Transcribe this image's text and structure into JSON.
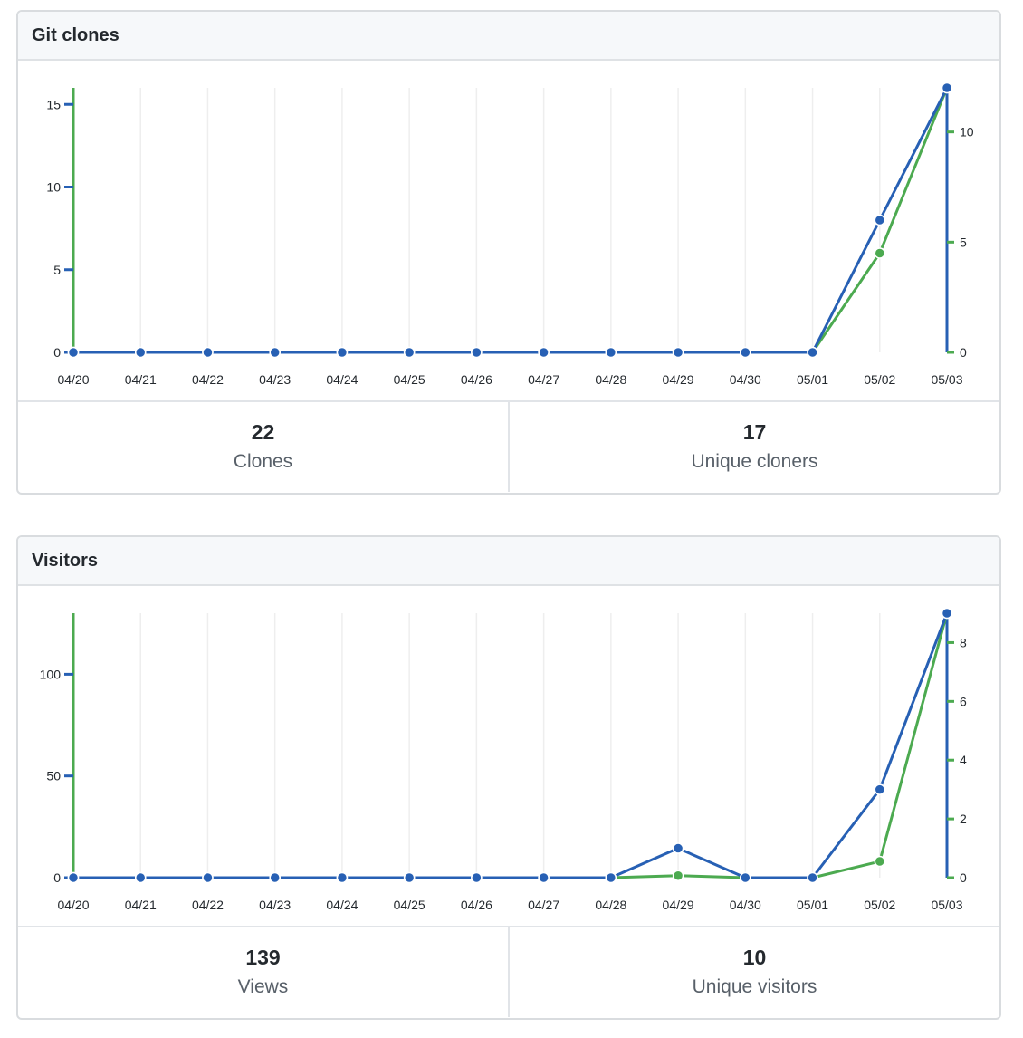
{
  "colors": {
    "total": "#4caa50",
    "unique": "#2760b4",
    "grid": "#eeeeee",
    "axis_text": "#24292e"
  },
  "clones": {
    "title": "Git clones",
    "total_value": "22",
    "total_label": "Clones",
    "unique_value": "17",
    "unique_label": "Unique cloners"
  },
  "visitors": {
    "title": "Visitors",
    "total_value": "139",
    "total_label": "Views",
    "unique_value": "10",
    "unique_label": "Unique visitors"
  },
  "chart_data": [
    {
      "type": "line",
      "title": "Git clones",
      "categories": [
        "04/20",
        "04/21",
        "04/22",
        "04/23",
        "04/24",
        "04/25",
        "04/26",
        "04/27",
        "04/28",
        "04/29",
        "04/30",
        "05/01",
        "05/02",
        "05/03"
      ],
      "series": [
        {
          "name": "Clones",
          "axis": "left",
          "color": "#4caa50",
          "values": [
            0,
            0,
            0,
            0,
            0,
            0,
            0,
            0,
            0,
            0,
            0,
            0,
            6,
            16
          ]
        },
        {
          "name": "Unique cloners",
          "axis": "right",
          "color": "#2760b4",
          "values": [
            0,
            0,
            0,
            0,
            0,
            0,
            0,
            0,
            0,
            0,
            0,
            0,
            6,
            12
          ]
        }
      ],
      "left_axis": {
        "ylim": [
          0,
          16
        ],
        "ticks": [
          0,
          5,
          10,
          15
        ]
      },
      "right_axis": {
        "ylim": [
          0,
          12
        ],
        "ticks": [
          0,
          5,
          10
        ]
      },
      "grid": true
    },
    {
      "type": "line",
      "title": "Visitors",
      "categories": [
        "04/20",
        "04/21",
        "04/22",
        "04/23",
        "04/24",
        "04/25",
        "04/26",
        "04/27",
        "04/28",
        "04/29",
        "04/30",
        "05/01",
        "05/02",
        "05/03"
      ],
      "series": [
        {
          "name": "Views",
          "axis": "left",
          "color": "#4caa50",
          "values": [
            0,
            0,
            0,
            0,
            0,
            0,
            0,
            0,
            0,
            1,
            0,
            0,
            8,
            130
          ]
        },
        {
          "name": "Unique visitors",
          "axis": "right",
          "color": "#2760b4",
          "values": [
            0,
            0,
            0,
            0,
            0,
            0,
            0,
            0,
            0,
            1,
            0,
            0,
            3,
            9
          ]
        }
      ],
      "left_axis": {
        "ylim": [
          0,
          130
        ],
        "ticks": [
          0,
          50,
          100
        ]
      },
      "right_axis": {
        "ylim": [
          0,
          9
        ],
        "ticks": [
          0,
          2,
          4,
          6,
          8
        ]
      },
      "grid": true
    }
  ]
}
